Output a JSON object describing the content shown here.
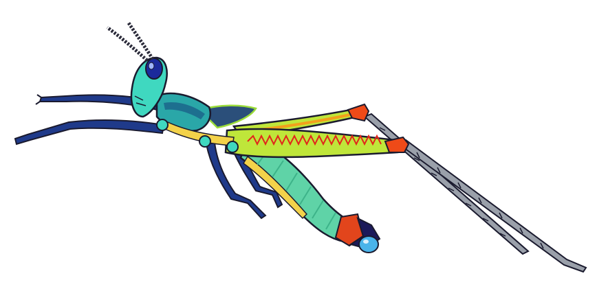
{
  "image": {
    "subject": "grasshopper-illustration",
    "background_color": "#ffffff",
    "colors": {
      "outline": "#1a1a2e",
      "head": "#3fd8c0",
      "eye": "#1b2a9c",
      "eye_highlight": "#9fb6ff",
      "thorax": "#2aa7a8",
      "thorax_dark": "#1d6f8f",
      "wing": "#2b4f7a",
      "wing_edge": "#9bdc3a",
      "abdomen": "#5fd3a7",
      "abdomen_band": "#3db389",
      "underbelly": "#f3d24a",
      "hind_femur": "#bfe63a",
      "femur_stripe": "#f2a01c",
      "femur_zigzag": "#e2261a",
      "knee": "#ef4a18",
      "tibia": "#9aa0aa",
      "legs_front": "#1f3a8a",
      "tip_band": "#e2451c",
      "tip_dark": "#1c1a5a",
      "droplet": "#4ab4ea",
      "antenna": "#2b2b3a"
    }
  }
}
